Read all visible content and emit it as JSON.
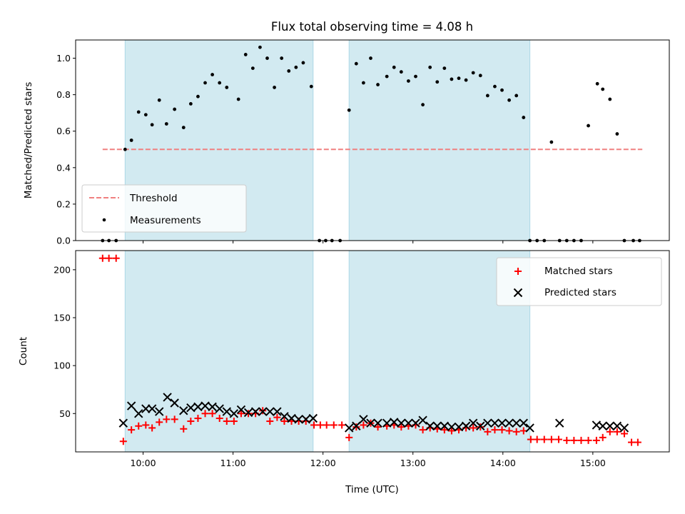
{
  "chart_data": {
    "title": "Flux total observing time = 4.08 h",
    "xlabel": "Time (UTC)",
    "xlim": [
      9.25,
      15.85
    ],
    "x_ticks": [
      {
        "value": 10,
        "label": "10:00"
      },
      {
        "value": 11,
        "label": "11:00"
      },
      {
        "value": 12,
        "label": "12:00"
      },
      {
        "value": 13,
        "label": "13:00"
      },
      {
        "value": 14,
        "label": "14:00"
      },
      {
        "value": 15,
        "label": "15:00"
      }
    ],
    "shaded_intervals": [
      [
        9.8,
        11.89
      ],
      [
        12.29,
        14.3
      ]
    ],
    "shade_color": "#add8e6",
    "panels": [
      {
        "type": "scatter",
        "ylabel": "Matched/Predicted stars",
        "ylim": [
          0,
          1.1
        ],
        "y_ticks": [
          "0.0",
          "0.2",
          "0.4",
          "0.6",
          "0.8",
          "1.0"
        ],
        "legend": {
          "location": "lower left",
          "entries": [
            "Threshold",
            "Measurements"
          ]
        },
        "threshold": {
          "name": "Threshold",
          "value": 0.5,
          "x_range": [
            9.55,
            15.55
          ],
          "color": "#f08080"
        },
        "series": [
          {
            "name": "Measurements",
            "color": "#000000",
            "x": [
              9.55,
              9.62,
              9.7,
              9.8,
              9.87,
              9.95,
              10.03,
              10.1,
              10.18,
              10.26,
              10.35,
              10.45,
              10.53,
              10.61,
              10.69,
              10.77,
              10.85,
              10.93,
              11.06,
              11.14,
              11.22,
              11.3,
              11.38,
              11.46,
              11.54,
              11.62,
              11.7,
              11.78,
              11.87,
              11.96,
              12.03,
              12.1,
              12.19,
              12.29,
              12.37,
              12.45,
              12.53,
              12.61,
              12.71,
              12.79,
              12.87,
              12.95,
              13.03,
              13.11,
              13.19,
              13.27,
              13.35,
              13.43,
              13.51,
              13.59,
              13.67,
              13.75,
              13.83,
              13.91,
              13.99,
              14.07,
              14.15,
              14.23,
              14.3,
              14.38,
              14.46,
              14.54,
              14.63,
              14.71,
              14.79,
              14.87,
              14.95,
              15.05,
              15.11,
              15.19,
              15.27,
              15.35,
              15.45,
              15.52
            ],
            "y": [
              0,
              0,
              0,
              0.5,
              0.55,
              0.705,
              0.69,
              0.635,
              0.77,
              0.64,
              0.72,
              0.62,
              0.75,
              0.79,
              0.865,
              0.91,
              0.865,
              0.84,
              0.775,
              1.02,
              0.945,
              1.06,
              1.0,
              0.84,
              1.0,
              0.93,
              0.95,
              0.975,
              0.845,
              0,
              0,
              0,
              0,
              0.715,
              0.97,
              0.865,
              1.0,
              0.855,
              0.9,
              0.95,
              0.925,
              0.875,
              0.9,
              0.745,
              0.95,
              0.87,
              0.945,
              0.885,
              0.89,
              0.88,
              0.92,
              0.905,
              0.795,
              0.845,
              0.825,
              0.77,
              0.795,
              0.675,
              0,
              0,
              0,
              0.54,
              0,
              0,
              0,
              0,
              0.63,
              0.86,
              0.83,
              0.775,
              0.585,
              0,
              0,
              0
            ]
          }
        ]
      },
      {
        "type": "scatter",
        "ylabel": "Count",
        "ylim": [
          10,
          220
        ],
        "y_ticks": [
          "50",
          "100",
          "150",
          "200"
        ],
        "legend": {
          "location": "upper right",
          "entries": [
            "Matched stars",
            "Predicted stars"
          ]
        },
        "series": [
          {
            "name": "Matched stars",
            "marker": "plus",
            "color": "#ff0000",
            "x": [
              9.55,
              9.62,
              9.7,
              9.78,
              9.87,
              9.95,
              10.03,
              10.1,
              10.18,
              10.26,
              10.35,
              10.45,
              10.53,
              10.61,
              10.69,
              10.77,
              10.85,
              10.93,
              11.01,
              11.09,
              11.17,
              11.25,
              11.33,
              11.41,
              11.49,
              11.57,
              11.65,
              11.73,
              11.81,
              11.9,
              11.97,
              12.04,
              12.12,
              12.21,
              12.29,
              12.37,
              12.45,
              12.53,
              12.61,
              12.71,
              12.79,
              12.87,
              12.95,
              13.03,
              13.11,
              13.19,
              13.27,
              13.35,
              13.43,
              13.51,
              13.59,
              13.67,
              13.75,
              13.83,
              13.91,
              13.99,
              14.07,
              14.15,
              14.23,
              14.31,
              14.38,
              14.46,
              14.54,
              14.62,
              14.71,
              14.79,
              14.87,
              14.95,
              15.04,
              15.11,
              15.19,
              15.27,
              15.35,
              15.43,
              15.5
            ],
            "y": [
              212,
              212,
              212,
              21,
              33,
              37,
              38,
              35,
              41,
              44,
              44,
              34,
              42,
              45,
              50,
              50,
              45,
              42,
              42,
              50,
              50,
              50,
              53,
              42,
              46,
              42,
              42,
              42,
              42,
              38,
              38,
              38,
              38,
              38,
              25,
              36,
              38,
              40,
              36,
              37,
              38,
              36,
              37,
              38,
              33,
              35,
              34,
              33,
              32,
              33,
              35,
              35,
              36,
              31,
              33,
              33,
              32,
              31,
              32,
              23,
              23,
              23,
              23,
              23,
              22,
              22,
              22,
              22,
              22,
              25,
              31,
              31,
              29,
              20,
              20
            ]
          },
          {
            "name": "Predicted stars",
            "marker": "x",
            "color": "#000000",
            "x": [
              9.78,
              9.87,
              9.95,
              10.03,
              10.1,
              10.18,
              10.27,
              10.35,
              10.45,
              10.53,
              10.61,
              10.69,
              10.77,
              10.85,
              10.93,
              11.01,
              11.09,
              11.17,
              11.25,
              11.33,
              11.41,
              11.49,
              11.57,
              11.65,
              11.73,
              11.81,
              11.89,
              12.29,
              12.37,
              12.45,
              12.53,
              12.61,
              12.71,
              12.79,
              12.87,
              12.95,
              13.03,
              13.11,
              13.19,
              13.27,
              13.35,
              13.43,
              13.51,
              13.59,
              13.67,
              13.75,
              13.83,
              13.91,
              13.99,
              14.07,
              14.15,
              14.23,
              14.3,
              14.63,
              15.04,
              15.11,
              15.19,
              15.27,
              15.35
            ],
            "y": [
              40,
              58,
              50,
              55,
              55,
              52,
              67,
              61,
              53,
              56,
              57,
              58,
              57,
              55,
              52,
              50,
              54,
              51,
              52,
              52,
              52,
              52,
              47,
              45,
              44,
              44,
              45,
              35,
              37,
              44,
              40,
              40,
              40,
              41,
              40,
              40,
              40,
              43,
              37,
              37,
              37,
              36,
              36,
              37,
              40,
              37,
              40,
              40,
              40,
              40,
              40,
              40,
              35,
              40,
              38,
              37,
              37,
              37,
              35
            ]
          }
        ]
      }
    ]
  }
}
